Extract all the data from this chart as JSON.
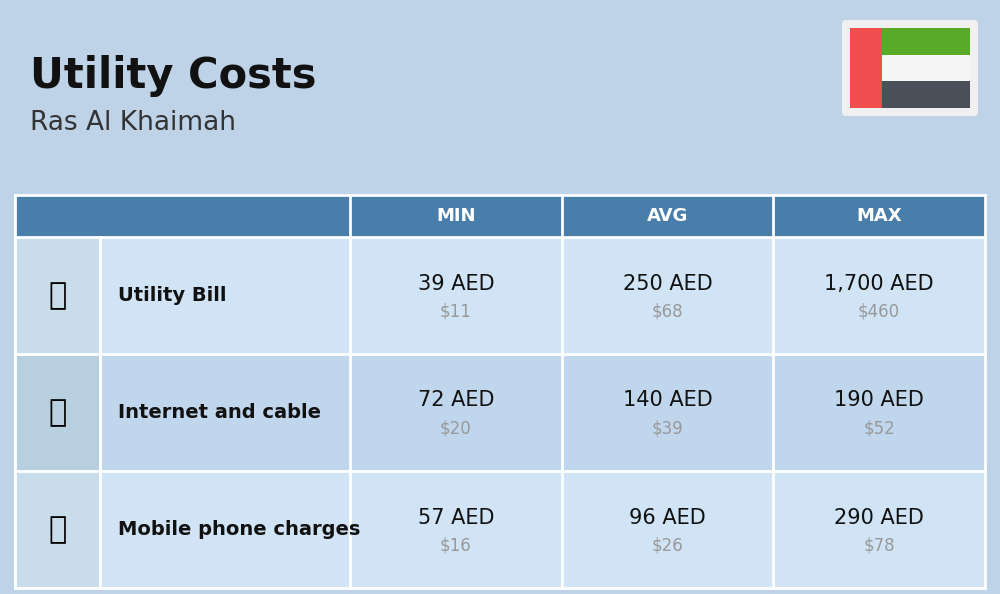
{
  "title": "Utility Costs",
  "subtitle": "Ras Al Khaimah",
  "background_color": "#bed3e8",
  "table_header_color": "#4a7eaa",
  "table_header_text_color": "#ffffff",
  "row_color_light": "#d0e4f5",
  "row_color_dark": "#c0d6ec",
  "icon_col_color_light": "#c8dcea",
  "icon_col_color_dark": "#b8cfe0",
  "col_headers": [
    "MIN",
    "AVG",
    "MAX"
  ],
  "rows": [
    {
      "label": "Utility Bill",
      "min_aed": "39 AED",
      "min_usd": "$11",
      "avg_aed": "250 AED",
      "avg_usd": "$68",
      "max_aed": "1,700 AED",
      "max_usd": "$460"
    },
    {
      "label": "Internet and cable",
      "min_aed": "72 AED",
      "min_usd": "$20",
      "avg_aed": "140 AED",
      "avg_usd": "$39",
      "max_aed": "190 AED",
      "max_usd": "$52"
    },
    {
      "label": "Mobile phone charges",
      "min_aed": "57 AED",
      "min_usd": "$16",
      "avg_aed": "96 AED",
      "avg_usd": "$26",
      "max_aed": "290 AED",
      "max_usd": "$78"
    }
  ],
  "title_fontsize": 30,
  "subtitle_fontsize": 19,
  "header_fontsize": 13,
  "label_fontsize": 14,
  "value_fontsize": 15,
  "usd_fontsize": 12,
  "usd_color": "#999999",
  "label_color": "#111111",
  "value_color": "#111111",
  "flag_red": "#f04e4e",
  "flag_green": "#5aaa2a",
  "flag_white": "#f5f5f5",
  "flag_black": "#4a4f5a"
}
